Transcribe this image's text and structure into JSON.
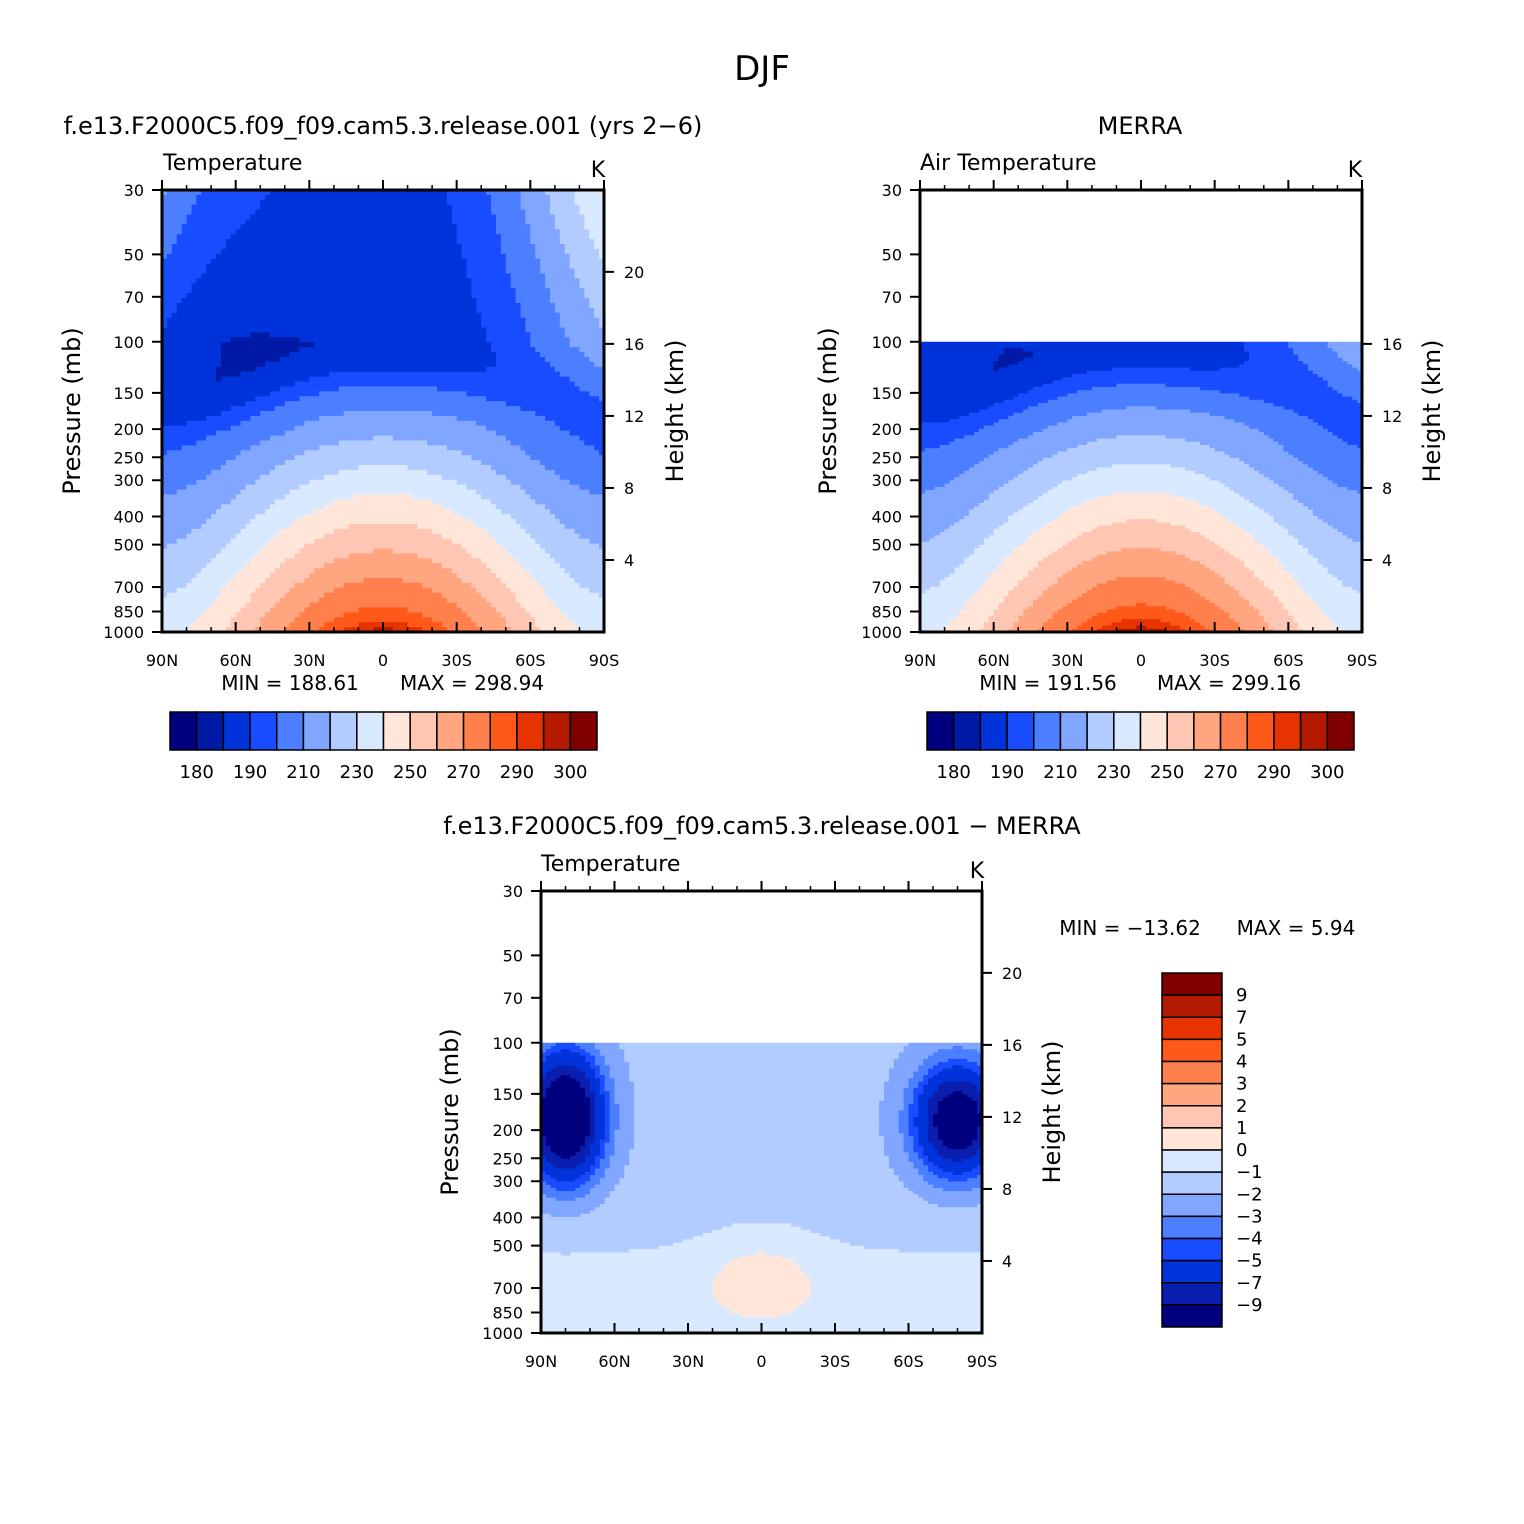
{
  "page_title": "DJF",
  "colors": {
    "temp": [
      "#00007f",
      "#001aa6",
      "#0033d9",
      "#1a4cff",
      "#4c7fff",
      "#80a6ff",
      "#b3ccff",
      "#d9e9ff",
      "#ffe6d9",
      "#ffc7b3",
      "#ffa680",
      "#ff804c",
      "#ff591a",
      "#e63300",
      "#b31a00",
      "#800000"
    ],
    "diff": [
      "#00007f",
      "#0a1fb0",
      "#0033d9",
      "#1a4cff",
      "#4c7fff",
      "#80a6ff",
      "#b3ccff",
      "#d9e9ff",
      "#ffe6d9",
      "#ffc7b3",
      "#ffa680",
      "#ff804c",
      "#ff591a",
      "#e63300",
      "#b31a00",
      "#800000"
    ]
  },
  "chart_data": [
    {
      "id": "model",
      "type": "heatmap",
      "title": "f.e13.F2000C5.f09_f09.cam5.3.release.001 (yrs 2−6)",
      "left_label": "Temperature",
      "units": "K",
      "ylabel": "Pressure (mb)",
      "ylabel_right": "Height (km)",
      "x_ticks": [
        "90N",
        "60N",
        "30N",
        "0",
        "30S",
        "60S",
        "90S"
      ],
      "y_ticks": [
        "30",
        "50",
        "70",
        "100",
        "150",
        "200",
        "250",
        "300",
        "400",
        "500",
        "700",
        "850",
        "1000"
      ],
      "y_ticks_right": [
        "20",
        "16",
        "12",
        "8",
        "4"
      ],
      "min_label": "MIN = 188.61",
      "max_label": "MAX = 298.94",
      "min": 188.61,
      "max": 298.94,
      "data_top_mb": 30,
      "levels": [
        180,
        190,
        200,
        210,
        220,
        230,
        240,
        250,
        260,
        270,
        280,
        290,
        300
      ],
      "colorbar_labels": [
        "180",
        "190",
        "210",
        "230",
        "250",
        "270",
        "290",
        "300"
      ]
    },
    {
      "id": "obs",
      "type": "heatmap",
      "title": "MERRA",
      "left_label": "Air Temperature",
      "units": "K",
      "ylabel": "Pressure (mb)",
      "ylabel_right": "Height (km)",
      "x_ticks": [
        "90N",
        "60N",
        "30N",
        "0",
        "30S",
        "60S",
        "90S"
      ],
      "y_ticks": [
        "30",
        "50",
        "70",
        "100",
        "150",
        "200",
        "250",
        "300",
        "400",
        "500",
        "700",
        "850",
        "1000"
      ],
      "y_ticks_right": [
        "16",
        "12",
        "8",
        "4"
      ],
      "min_label": "MIN = 191.56",
      "max_label": "MAX = 299.16",
      "min": 191.56,
      "max": 299.16,
      "data_top_mb": 100,
      "levels": [
        180,
        190,
        200,
        210,
        220,
        230,
        240,
        250,
        260,
        270,
        280,
        290,
        300
      ],
      "colorbar_labels": [
        "180",
        "190",
        "210",
        "230",
        "250",
        "270",
        "290",
        "300"
      ]
    },
    {
      "id": "diff",
      "type": "heatmap",
      "title": "f.e13.F2000C5.f09_f09.cam5.3.release.001 − MERRA",
      "left_label": "Temperature",
      "units": "K",
      "ylabel": "Pressure (mb)",
      "ylabel_right": "Height (km)",
      "x_ticks": [
        "90N",
        "60N",
        "30N",
        "0",
        "30S",
        "60S",
        "90S"
      ],
      "y_ticks": [
        "30",
        "50",
        "70",
        "100",
        "150",
        "200",
        "250",
        "300",
        "400",
        "500",
        "700",
        "850",
        "1000"
      ],
      "y_ticks_right": [
        "20",
        "16",
        "12",
        "8",
        "4"
      ],
      "min_label": "MIN = −13.62",
      "max_label": "MAX =    5.94",
      "min": -13.62,
      "max": 5.94,
      "data_top_mb": 100,
      "levels": [
        -9,
        -7,
        -5,
        -4,
        -3,
        -2,
        -1,
        0,
        1,
        2,
        3,
        4,
        5,
        7,
        9
      ],
      "colorbar_labels": [
        "9",
        "7",
        "5",
        "4",
        "3",
        "2",
        "1",
        "0",
        "−1",
        "−2",
        "−3",
        "−4",
        "−5",
        "−7",
        "−9"
      ]
    }
  ]
}
